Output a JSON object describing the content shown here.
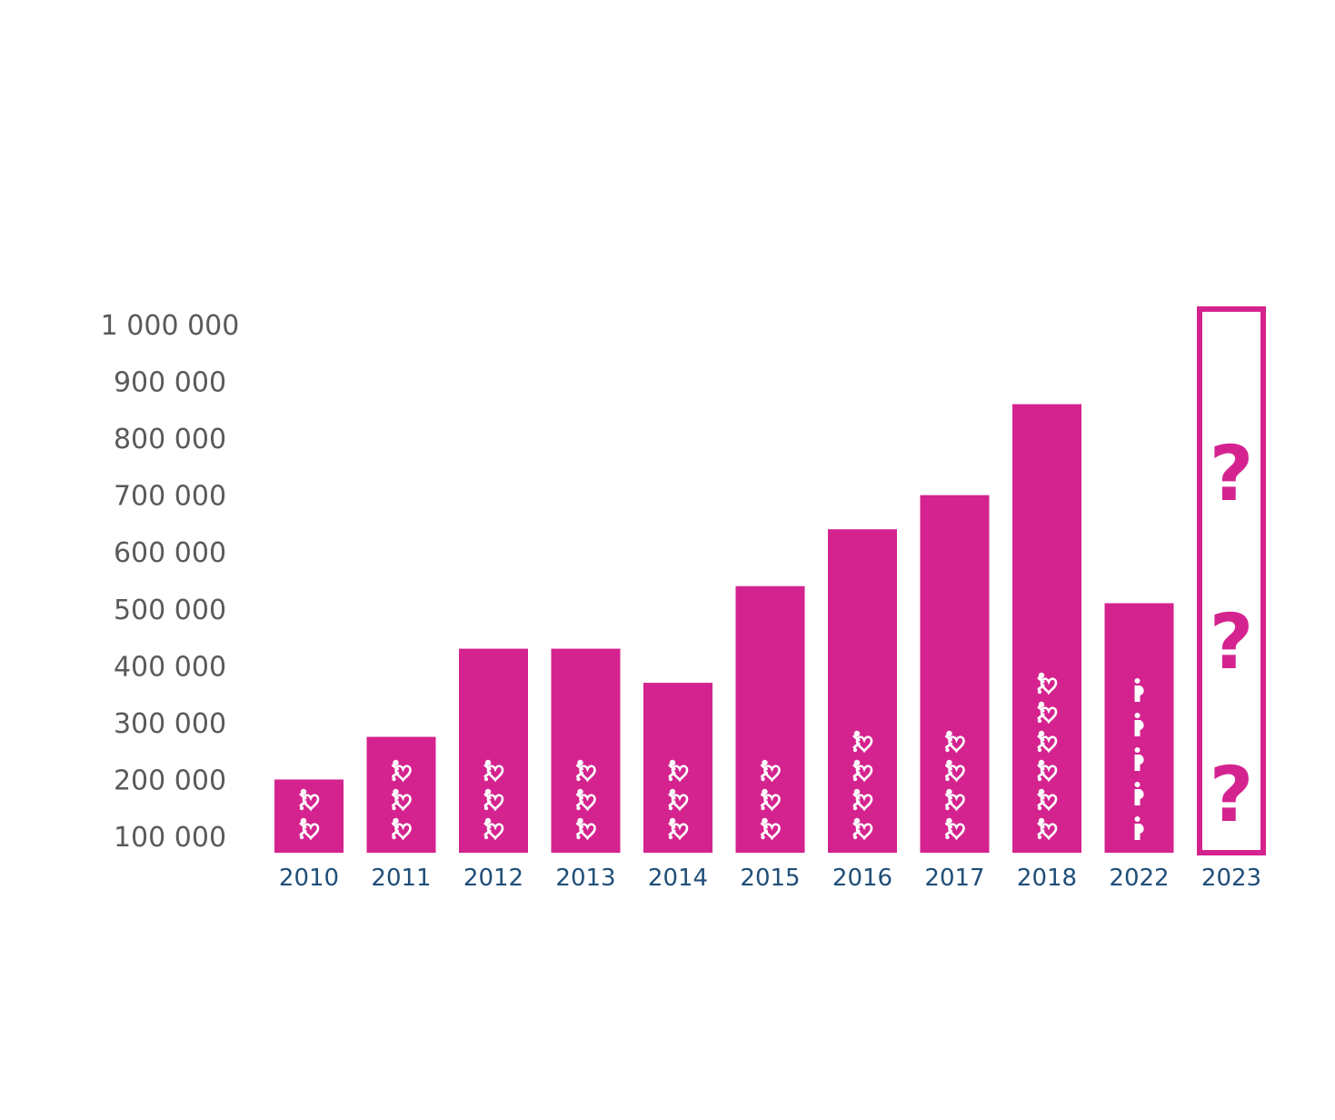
{
  "chart_data": {
    "type": "bar",
    "categories": [
      "2010",
      "2011",
      "2012",
      "2013",
      "2014",
      "2015",
      "2016",
      "2017",
      "2018",
      "2022",
      "2023"
    ],
    "values": [
      200000,
      275000,
      430000,
      430000,
      370000,
      540000,
      640000,
      700000,
      860000,
      510000,
      null
    ],
    "ylim": [
      100000,
      1000000
    ],
    "yticks": [
      100000,
      200000,
      300000,
      400000,
      500000,
      600000,
      700000,
      800000,
      900000,
      1000000
    ],
    "ytick_labels": [
      "100 000",
      "200 000",
      "300 000",
      "400 000",
      "500 000",
      "600 000",
      "700 000",
      "800 000",
      "900 000",
      "1 000 000"
    ],
    "icon_counts": [
      2,
      3,
      3,
      3,
      3,
      3,
      4,
      4,
      6,
      5,
      0
    ],
    "icon_types": [
      "child-heart-icon",
      "child-heart-icon",
      "child-heart-icon",
      "child-heart-icon",
      "child-heart-icon",
      "child-heart-icon",
      "child-heart-icon",
      "child-heart-icon",
      "child-heart-icon",
      "pregnant-woman-icon",
      ""
    ],
    "unknown_category": "2023",
    "unknown_marks": [
      "?",
      "?",
      "?"
    ],
    "grid": false,
    "legend": "none",
    "colors": {
      "bar": "#d4238e",
      "icon": "#ffffff",
      "ytick": "#5a5a5a",
      "xtick": "#1f4e79"
    }
  }
}
